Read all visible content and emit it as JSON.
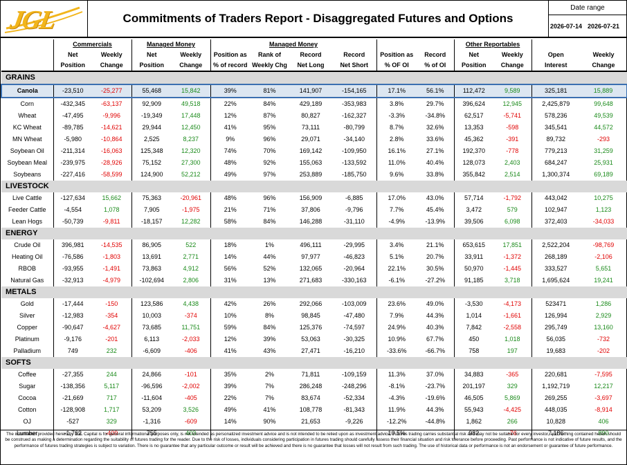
{
  "header": {
    "logo_text": "JGL",
    "title": "Commitments of Traders Report - Disaggregated Futures and Options",
    "date_range_label": "Date range",
    "date_start": "2026-07-14",
    "date_end": "2026-07-21"
  },
  "columns": {
    "groups": {
      "commercials": "Commercials",
      "managed_money": "Managed Money",
      "managed_money2": "Managed Money",
      "other_reportables": "Other Reportables"
    },
    "row1": [
      "Net",
      "Weekly",
      "Net",
      "Weekly",
      "Position as",
      "Rank of",
      "Record",
      "Record",
      "Position as",
      "Record",
      "Net",
      "Weekly",
      "Open",
      "Weekly"
    ],
    "row2": [
      "Position",
      "Change",
      "Position",
      "Change",
      "% of record",
      "Weekly Chg",
      "Net Long",
      "Net Short",
      "% OF OI",
      "% of OI",
      "Position",
      "Change",
      "Interest",
      "Change"
    ]
  },
  "sections": [
    {
      "name": "GRAINS",
      "rows": [
        [
          "Canola",
          "-23,510",
          "-25,277",
          "55,468",
          "15,842",
          "39%",
          "81%",
          "141,907",
          "-154,165",
          "17.1%",
          "56.1%",
          "112,472",
          "9,589",
          "325,181",
          "15,889"
        ],
        [
          "Corn",
          "-432,345",
          "-63,137",
          "92,909",
          "49,518",
          "22%",
          "84%",
          "429,189",
          "-353,983",
          "3.8%",
          "29.7%",
          "396,624",
          "12,945",
          "2,425,879",
          "99,648"
        ],
        [
          "Wheat",
          "-47,495",
          "-9,996",
          "-19,349",
          "17,448",
          "12%",
          "87%",
          "80,827",
          "-162,327",
          "-3.3%",
          "-34.8%",
          "62,517",
          "-5,741",
          "578,236",
          "49,539"
        ],
        [
          "KC Wheat",
          "-89,785",
          "-14,621",
          "29,944",
          "12,450",
          "41%",
          "95%",
          "73,111",
          "-80,799",
          "8.7%",
          "32.6%",
          "13,353",
          "-598",
          "345,541",
          "44,572"
        ],
        [
          "MN Wheat",
          "-5,980",
          "-10,864",
          "2,525",
          "8,237",
          "9%",
          "96%",
          "29,071",
          "-34,140",
          "2.8%",
          "33.6%",
          "45,362",
          "-391",
          "89,732",
          "-293"
        ],
        [
          "Soybean Oil",
          "-211,314",
          "-16,063",
          "125,348",
          "12,320",
          "74%",
          "70%",
          "169,142",
          "-109,950",
          "16.1%",
          "27.1%",
          "192,370",
          "-778",
          "779,213",
          "31,259"
        ],
        [
          "Soybean Meal",
          "-239,975",
          "-28,926",
          "75,152",
          "27,300",
          "48%",
          "92%",
          "155,063",
          "-133,592",
          "11.0%",
          "40.4%",
          "128,073",
          "2,403",
          "684,247",
          "25,931"
        ],
        [
          "Soybeans",
          "-227,416",
          "-58,599",
          "124,900",
          "52,212",
          "49%",
          "97%",
          "253,889",
          "-185,750",
          "9.6%",
          "33.8%",
          "355,842",
          "2,514",
          "1,300,374",
          "69,189"
        ]
      ]
    },
    {
      "name": "LIVESTOCK",
      "rows": [
        [
          "Live Cattle",
          "-127,634",
          "15,662",
          "75,363",
          "-20,961",
          "48%",
          "96%",
          "156,909",
          "-6,885",
          "17.0%",
          "43.0%",
          "57,714",
          "-1,792",
          "443,042",
          "10,275"
        ],
        [
          "Feeder Cattle",
          "-4,554",
          "1,078",
          "7,905",
          "-1,975",
          "21%",
          "71%",
          "37,806",
          "-9,796",
          "7.7%",
          "45.4%",
          "3,472",
          "579",
          "102,947",
          "1,123"
        ],
        [
          "Lean Hogs",
          "-50,739",
          "-9,811",
          "-18,157",
          "12,282",
          "58%",
          "84%",
          "146,288",
          "-31,110",
          "-4.9%",
          "-13.9%",
          "39,506",
          "6,098",
          "372,403",
          "-34,033"
        ]
      ]
    },
    {
      "name": "ENERGY",
      "rows": [
        [
          "Crude Oil",
          "396,981",
          "-14,535",
          "86,905",
          "522",
          "18%",
          "1%",
          "496,111",
          "-29,995",
          "3.4%",
          "21.1%",
          "653,615",
          "17,851",
          "2,522,204",
          "-98,769"
        ],
        [
          "Heating Oil",
          "-76,586",
          "-1,803",
          "13,691",
          "2,771",
          "14%",
          "44%",
          "97,977",
          "-46,823",
          "5.1%",
          "20.7%",
          "33,911",
          "-1,372",
          "268,189",
          "-2,106"
        ],
        [
          "RBOB",
          "-93,955",
          "-1,491",
          "73,863",
          "4,912",
          "56%",
          "52%",
          "132,065",
          "-20,964",
          "22.1%",
          "30.5%",
          "50,970",
          "-1,445",
          "333,527",
          "5,651"
        ],
        [
          "Natural Gas",
          "-32,913",
          "-4,979",
          "-102,694",
          "2,806",
          "31%",
          "13%",
          "271,683",
          "-330,163",
          "-6.1%",
          "-27.2%",
          "91,185",
          "3,718",
          "1,695,624",
          "19,241"
        ]
      ]
    },
    {
      "name": "METALS",
      "rows": [
        [
          "Gold",
          "-17,444",
          "-150",
          "123,586",
          "4,438",
          "42%",
          "26%",
          "292,066",
          "-103,009",
          "23.6%",
          "49.0%",
          "-3,530",
          "-4,173",
          "523471",
          "1,286"
        ],
        [
          "Silver",
          "-12,983",
          "-354",
          "10,003",
          "-374",
          "10%",
          "8%",
          "98,845",
          "-47,480",
          "7.9%",
          "44.3%",
          "1,014",
          "-1,661",
          "126,994",
          "2,929"
        ],
        [
          "Copper",
          "-90,647",
          "-4,627",
          "73,685",
          "11,751",
          "59%",
          "84%",
          "125,376",
          "-74,597",
          "24.9%",
          "40.3%",
          "7,842",
          "-2,558",
          "295,749",
          "13,160"
        ],
        [
          "Platinum",
          "-9,176",
          "-201",
          "6,113",
          "-2,033",
          "12%",
          "39%",
          "53,063",
          "-30,325",
          "10.9%",
          "67.7%",
          "450",
          "1,018",
          "56,035",
          "-732"
        ],
        [
          "Palladium",
          "749",
          "232",
          "-6,609",
          "-406",
          "41%",
          "43%",
          "27,471",
          "-16,210",
          "-33.6%",
          "-66.7%",
          "758",
          "197",
          "19,683",
          "-202"
        ]
      ]
    },
    {
      "name": "SOFTS",
      "rows": [
        [
          "Coffee",
          "-27,355",
          "244",
          "24,866",
          "-101",
          "35%",
          "2%",
          "71,811",
          "-109,159",
          "11.3%",
          "37.0%",
          "34,883",
          "-365",
          "220,681",
          "-7,595"
        ],
        [
          "Sugar",
          "-138,356",
          "5,117",
          "-96,596",
          "-2,002",
          "39%",
          "7%",
          "286,248",
          "-248,296",
          "-8.1%",
          "-23.7%",
          "201,197",
          "329",
          "1,192,719",
          "12,217"
        ],
        [
          "Cocoa",
          "-21,669",
          "717",
          "-11,604",
          "-405",
          "22%",
          "7%",
          "83,674",
          "-52,334",
          "-4.3%",
          "-19.6%",
          "46,505",
          "5,869",
          "269,255",
          "-3,697"
        ],
        [
          "Cotton",
          "-128,908",
          "1,717",
          "53,209",
          "3,526",
          "49%",
          "41%",
          "108,778",
          "-81,343",
          "11.9%",
          "44.3%",
          "55,943",
          "-4,425",
          "448,035",
          "-8,914"
        ],
        [
          "OJ",
          "-527",
          "329",
          "-1,316",
          "-609",
          "14%",
          "90%",
          "21,653",
          "-9,226",
          "-12.2%",
          "-44.8%",
          "1,862",
          "266",
          "10,828",
          "406"
        ],
        [
          "Lumber",
          "-1,762",
          "-409",
          "755",
          "403",
          "",
          "",
          "",
          "",
          "10.5%",
          "",
          "982",
          "-76",
          "7,186",
          "890"
        ]
      ]
    }
  ],
  "disclaimer": "The information provided herein by JGL Capital is for general informational purposes only, is not intended as personalized investment advice and is not intended to be relied upon as investment advice.  Futures trading carries substantial risk and may not be suitable for every investor, and nothing contained herein should be construed as making a determination regarding the suitability of futures trading for the reader. Due to the risk of losses, individuals considering participation in futures trading should carefully assess their financial situation and risk tolerance before proceeding.  Past performance is not indicative of future results, and the performance of futures trading strategies is subject to variation. There is no guarantee that any particular outcome or result will be achieved and there is no guarantee that losses will not result from such trading. The use of historical data or performance is not an endorsement or guarantee of future performance.",
  "colors": {
    "positive": "#1a8a1a",
    "negative": "#e00000",
    "highlight": "#dce6f1",
    "section_bg": "#d9d9d9",
    "logo": "#f2b51b"
  }
}
